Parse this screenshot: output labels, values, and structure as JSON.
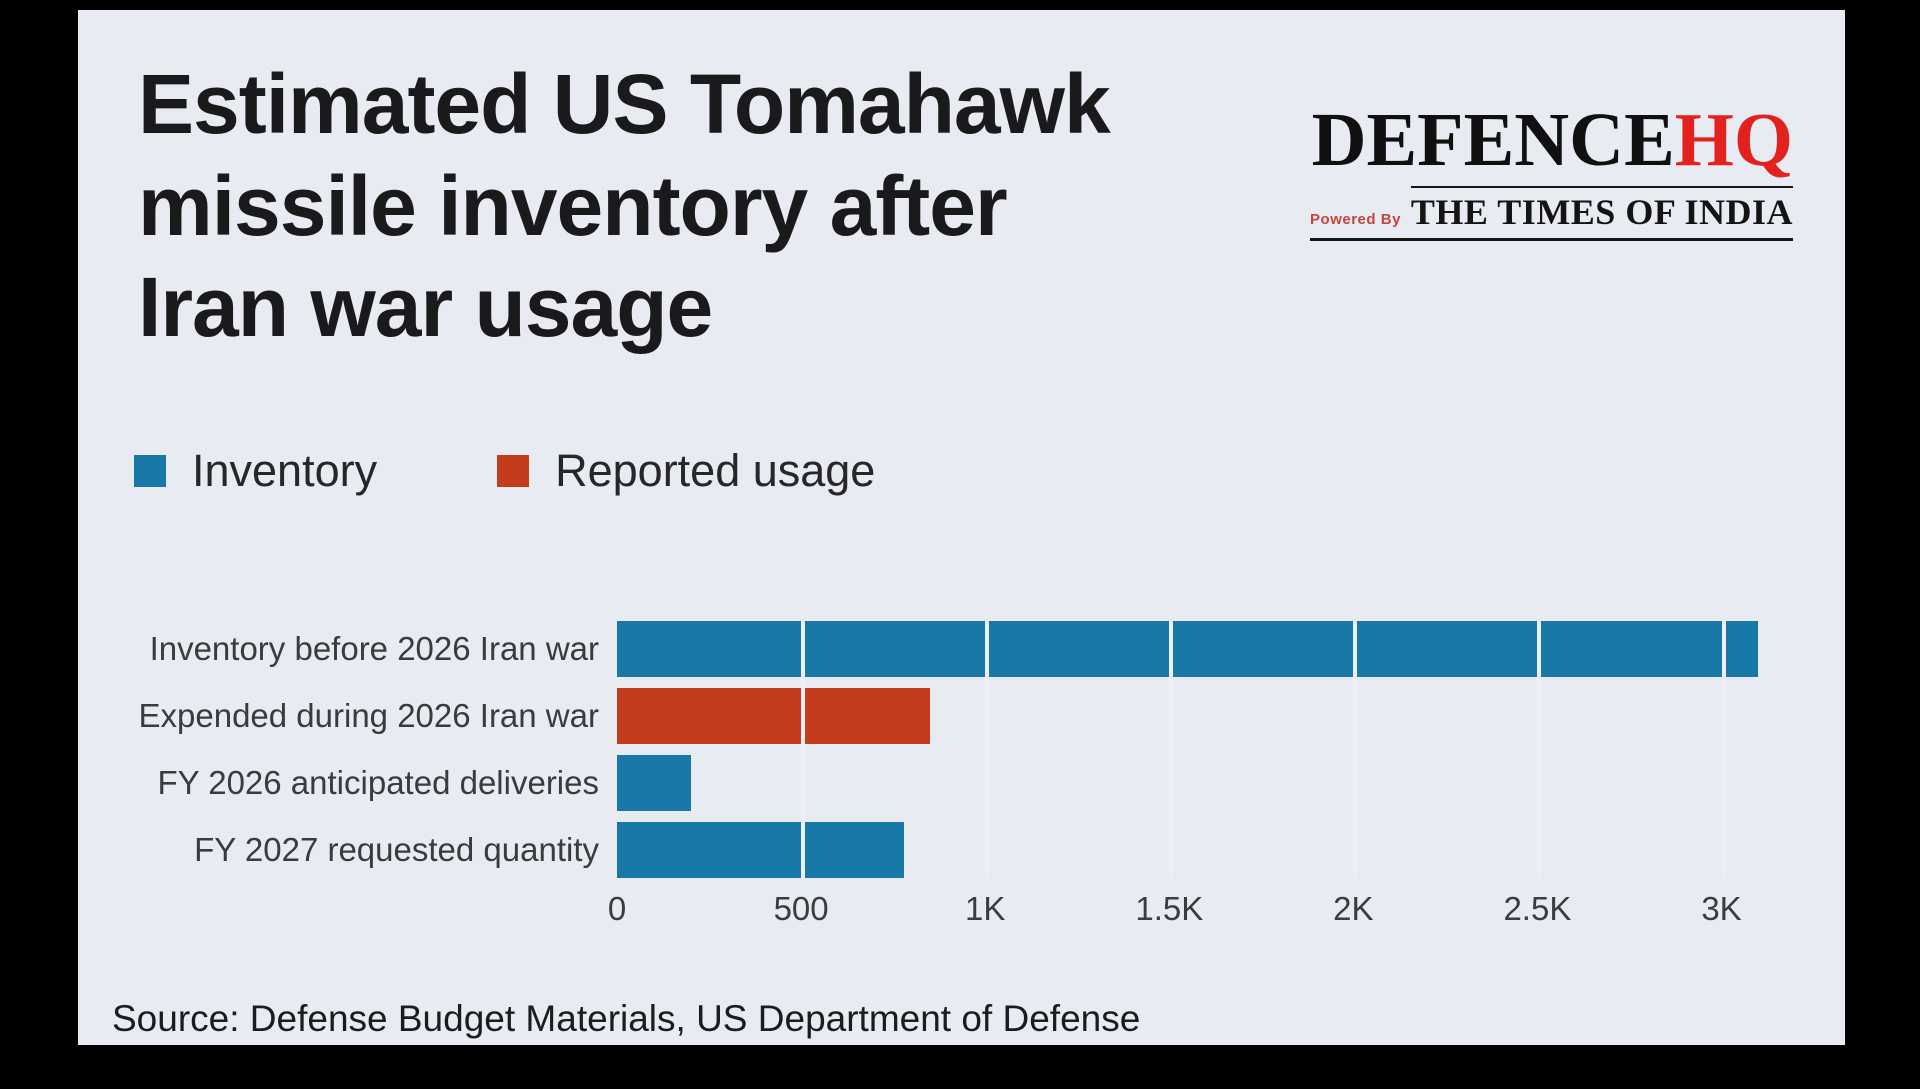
{
  "frame": {
    "outer_bg": "#000000",
    "panel_bg": "#e9ebf2"
  },
  "title": {
    "lines": [
      "Estimated US Tomahawk",
      "missile inventory after",
      "Iran war usage"
    ]
  },
  "logo": {
    "defence": "DEFENCE",
    "hq": "HQ",
    "hq_color": "#e3211f",
    "powered_by": "Powered By",
    "times": "THE TIMES OF INDIA"
  },
  "legend": {
    "items": [
      {
        "label": "Inventory",
        "color": "#1878a8"
      },
      {
        "label": "Reported usage",
        "color": "#c43c1c"
      }
    ]
  },
  "chart_data": {
    "type": "bar",
    "orientation": "horizontal",
    "title": "Estimated US Tomahawk missile inventory after Iran war usage",
    "categories": [
      "Inventory before 2026 Iran war",
      "Expended during 2026 Iran war",
      "FY 2026 anticipated deliveries",
      "FY 2027 requested quantity"
    ],
    "values": [
      3100,
      850,
      200,
      780
    ],
    "bar_colors": [
      "#1878a8",
      "#c43c1c",
      "#1878a8",
      "#1878a8"
    ],
    "series_labels": [
      "Inventory",
      "Reported usage",
      "Inventory",
      "Inventory"
    ],
    "x_ticks": [
      "0",
      "500",
      "1K",
      "1.5K",
      "2K",
      "2.5K",
      "3K"
    ],
    "x_tick_values": [
      0,
      500,
      1000,
      1500,
      2000,
      2500,
      3000
    ],
    "xlim": [
      0,
      3205
    ],
    "gridlines": "vertical-panel-color-at-ticks",
    "legend_position": "top-left"
  },
  "source": {
    "text": "Source: Defense Budget Materials, US Department of Defense"
  }
}
